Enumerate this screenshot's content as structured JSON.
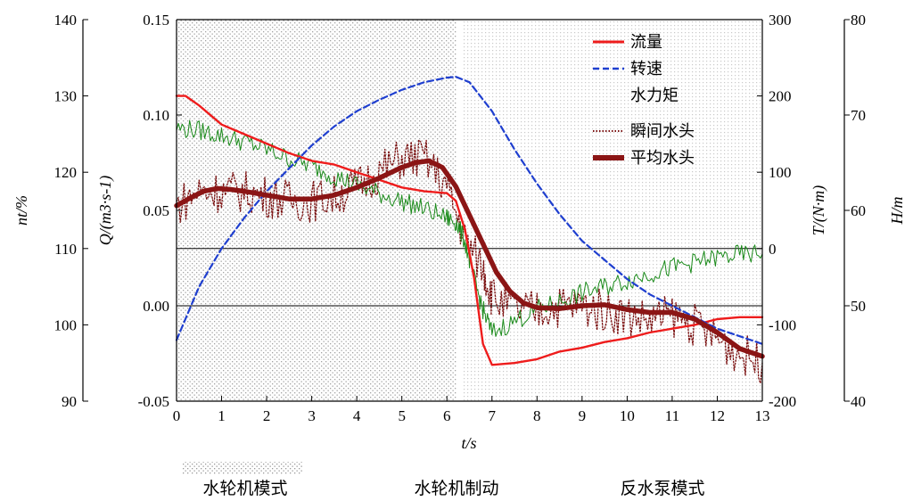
{
  "chart_data": {
    "type": "line",
    "x_axis": {
      "label": "t/s",
      "range": [
        0,
        13
      ],
      "ticks": [
        "0",
        "1",
        "2",
        "3",
        "4",
        "5",
        "6",
        "7",
        "8",
        "9",
        "10",
        "11",
        "12",
        "13"
      ]
    },
    "y_axes": [
      {
        "id": "nt",
        "label": "nt/%",
        "range": [
          90,
          140
        ],
        "ticks": [
          "90",
          "100",
          "110",
          "120",
          "130",
          "140"
        ],
        "position": "far-left"
      },
      {
        "id": "Q",
        "label": "Q/(m3·s-1)",
        "range": [
          -0.05,
          0.15
        ],
        "ticks": [
          "-0.05",
          "0.00",
          "0.05",
          "0.10",
          "0.15"
        ],
        "position": "left"
      },
      {
        "id": "T",
        "label": "T/(N·m)",
        "range": [
          -200,
          300
        ],
        "ticks": [
          "-200",
          "-100",
          "0",
          "100",
          "200",
          "300"
        ],
        "position": "right"
      },
      {
        "id": "H",
        "label": "H/m",
        "range": [
          40,
          80
        ],
        "ticks": [
          "40",
          "50",
          "60",
          "70",
          "80"
        ],
        "position": "far-right"
      }
    ],
    "legend_position": "top-right",
    "series": [
      {
        "name": "流量",
        "axis": "Q",
        "color": "#ee1c1c",
        "style": "solid",
        "x": [
          0,
          0.2,
          0.5,
          1.0,
          1.5,
          2.0,
          2.5,
          3.0,
          3.5,
          4.0,
          4.5,
          5.0,
          5.5,
          6.0,
          6.2,
          6.4,
          6.6,
          6.8,
          7.0,
          7.5,
          8.0,
          8.5,
          9.0,
          9.5,
          10.0,
          10.5,
          11.0,
          11.5,
          12.0,
          12.5,
          13.0
        ],
        "y": [
          0.11,
          0.11,
          0.105,
          0.095,
          0.09,
          0.085,
          0.08,
          0.076,
          0.074,
          0.07,
          0.066,
          0.062,
          0.06,
          0.059,
          0.055,
          0.04,
          0.015,
          -0.02,
          -0.031,
          -0.03,
          -0.028,
          -0.024,
          -0.022,
          -0.019,
          -0.017,
          -0.014,
          -0.012,
          -0.01,
          -0.007,
          -0.006,
          -0.006
        ]
      },
      {
        "name": "转速",
        "axis": "nt",
        "color": "#1f3fcf",
        "style": "dashed",
        "x": [
          0,
          0.5,
          1.0,
          1.5,
          2.0,
          2.5,
          3.0,
          3.5,
          4.0,
          4.5,
          5.0,
          5.5,
          6.0,
          6.2,
          6.5,
          7.0,
          7.5,
          8.0,
          8.5,
          9.0,
          9.5,
          10.0,
          10.5,
          11.0,
          11.5,
          12.0,
          12.5,
          13.0
        ],
        "y": [
          98,
          105,
          110,
          114,
          117.5,
          120.5,
          123.5,
          126,
          128,
          129.5,
          130.8,
          131.8,
          132.4,
          132.5,
          131.8,
          128,
          123,
          118.5,
          114.5,
          111,
          108.5,
          106,
          104,
          102.5,
          101,
          99.5,
          98.5,
          97.5
        ]
      },
      {
        "name": "水力矩",
        "axis": "T",
        "color": "#1a8a1a",
        "style": "solid-noisy",
        "x": [
          0,
          0.5,
          1.0,
          1.5,
          2.0,
          2.5,
          3.0,
          3.5,
          4.0,
          4.5,
          5.0,
          5.5,
          6.0,
          6.2,
          6.4,
          6.6,
          6.8,
          7.0,
          7.5,
          8.0,
          8.5,
          9.0,
          9.5,
          10.0,
          10.5,
          11.0,
          11.5,
          12.0,
          12.5,
          13.0
        ],
        "y": [
          158,
          155,
          148,
          140,
          130,
          118,
          108,
          95,
          83,
          72,
          62,
          52,
          40,
          35,
          10,
          -40,
          -80,
          -110,
          -95,
          -80,
          -70,
          -58,
          -50,
          -42,
          -33,
          -25,
          -18,
          -12,
          -8,
          -7
        ]
      },
      {
        "name": "瞬间水头",
        "axis": "H",
        "color": "#7a1010",
        "style": "dotted",
        "x": [
          0,
          0.5,
          1.0,
          1.5,
          2.0,
          2.5,
          3.0,
          3.5,
          4.0,
          4.5,
          5.0,
          5.5,
          6.0,
          6.4,
          6.8,
          7.0,
          7.5,
          8.0,
          8.5,
          9.0,
          9.5,
          10.0,
          10.5,
          11.0,
          11.5,
          12.0,
          12.5,
          13.0
        ],
        "y": [
          60.5,
          62.0,
          62.0,
          62.0,
          61.5,
          61.0,
          61.0,
          61.5,
          62.5,
          64.0,
          65.5,
          65.5,
          62.5,
          57.0,
          54.0,
          51.0,
          49.5,
          49.5,
          50.0,
          50.0,
          49.5,
          49.0,
          48.5,
          49.0,
          48.0,
          46.5,
          45.0,
          44.0
        ]
      },
      {
        "name": "平均水头",
        "axis": "H",
        "color": "#8b1515",
        "style": "thick",
        "x": [
          0,
          0.3,
          0.6,
          0.9,
          1.2,
          1.5,
          2.0,
          2.5,
          3.0,
          3.5,
          4.0,
          4.5,
          5.0,
          5.3,
          5.6,
          5.9,
          6.2,
          6.5,
          6.8,
          7.1,
          7.4,
          7.7,
          8.0,
          8.5,
          9.0,
          9.5,
          10.0,
          10.5,
          11.0,
          11.5,
          12.0,
          12.5,
          13.0
        ],
        "y": [
          60.5,
          61.3,
          62.0,
          62.3,
          62.2,
          62.0,
          61.6,
          61.2,
          61.2,
          61.6,
          62.4,
          63.4,
          64.5,
          65.0,
          65.2,
          64.5,
          62.5,
          59.5,
          56.5,
          53.5,
          51.5,
          50.3,
          49.8,
          49.7,
          50.0,
          50.1,
          49.6,
          49.3,
          49.3,
          48.6,
          47.2,
          45.5,
          44.7
        ]
      }
    ],
    "region_labels": [
      "水轮机模式",
      "水轮机制动",
      "反水泵模式"
    ]
  }
}
